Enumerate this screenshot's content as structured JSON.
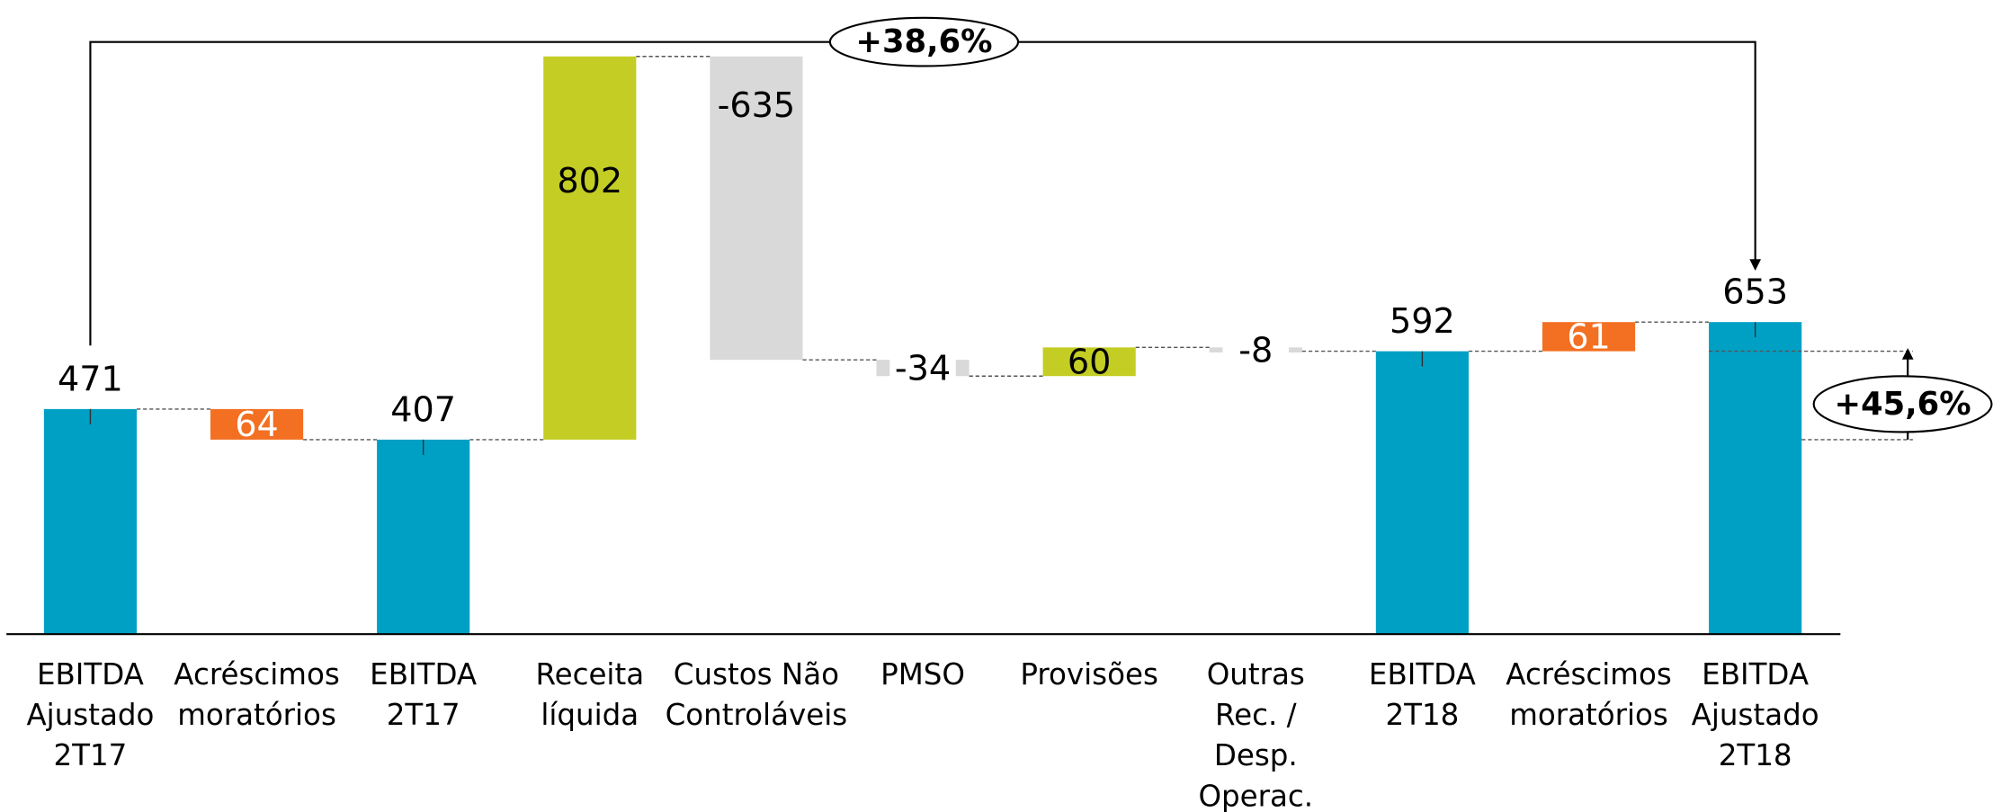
{
  "chart_data": {
    "type": "waterfall",
    "categories": [
      "EBITDA\nAjustado\n2T17",
      "Acréscimos\nmoratórios",
      "EBITDA\n2T17",
      "Receita\nlíquida",
      "Custos Não\nControláveis",
      "PMSO",
      "Provisões",
      "Outras\nRec. /\nDesp.\nOperac.",
      "EBITDA\n2T18",
      "Acréscimos\nmoratórios",
      "EBITDA\nAjustado\n2T18"
    ],
    "values": [
      471,
      -64,
      407,
      802,
      -635,
      -34,
      60,
      -8,
      592,
      61,
      653
    ],
    "value_labels": [
      "471",
      "64",
      "407",
      "802",
      "-635",
      "-34",
      "60",
      "-8",
      "592",
      "61",
      "653"
    ],
    "measure": [
      "total",
      "relative",
      "total",
      "relative",
      "relative",
      "relative",
      "relative",
      "relative",
      "total",
      "relative",
      "total"
    ],
    "colors": [
      "#00a0c4",
      "#f36f21",
      "#00a0c4",
      "#c3cd23",
      "#d9d9d9",
      "#d9d9d9",
      "#c3cd23",
      "#d9d9d9",
      "#00a0c4",
      "#f36f21",
      "#00a0c4"
    ],
    "annotations": [
      "+38,6%",
      "+45,6%"
    ]
  }
}
